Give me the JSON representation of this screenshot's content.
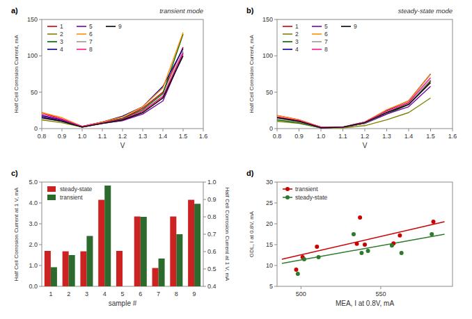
{
  "chart_data": [
    {
      "type": "line",
      "title": "a)",
      "annotations": [
        "transient mode"
      ],
      "xlabel": "V",
      "ylabel": "Half Cell Corrosion Current, mA",
      "x": [
        0.8,
        0.9,
        1.0,
        1.1,
        1.2,
        1.3,
        1.4,
        1.5
      ],
      "xlim": [
        0.8,
        1.6
      ],
      "xticks": [
        0.8,
        0.9,
        {
          "value": 1,
          "label": "1.0"
        },
        1.1,
        1.2,
        1.3,
        1.4,
        1.5,
        1.6
      ],
      "ylim": [
        0,
        150
      ],
      "yticks": [
        0,
        50,
        100,
        150
      ],
      "grid": false,
      "legend": "upper left",
      "series": [
        {
          "name": "1",
          "color": "#cc0000",
          "values": [
            22,
            13,
            3,
            9,
            14,
            28,
            50,
            112
          ]
        },
        {
          "name": "2",
          "color": "#808000",
          "values": [
            12,
            8,
            2,
            7,
            11,
            22,
            42,
            105
          ]
        },
        {
          "name": "3",
          "color": "#006400",
          "values": [
            15,
            10,
            2,
            8,
            14,
            26,
            48,
            130
          ]
        },
        {
          "name": "4",
          "color": "#000099",
          "values": [
            18,
            12,
            3,
            9,
            17,
            30,
            58,
            110
          ]
        },
        {
          "name": "5",
          "color": "#7700aa",
          "values": [
            17,
            11,
            2,
            7,
            11,
            20,
            38,
            103
          ]
        },
        {
          "name": "6",
          "color": "#ff8c00",
          "values": [
            22,
            15,
            3,
            9,
            16,
            30,
            56,
            132
          ]
        },
        {
          "name": "7",
          "color": "#999999",
          "values": [
            14,
            10,
            2,
            7,
            12,
            24,
            45,
            107
          ]
        },
        {
          "name": "8",
          "color": "#ff1493",
          "values": [
            20,
            13,
            3,
            8,
            13,
            24,
            44,
            104
          ]
        },
        {
          "name": "9",
          "color": "#000000",
          "values": [
            15,
            10,
            2,
            7,
            12,
            22,
            42,
            100
          ]
        }
      ]
    },
    {
      "type": "line",
      "title": "b)",
      "annotations": [
        "steady-state mode"
      ],
      "xlabel": "V",
      "ylabel": "Half Cell Corrosion Current, mA",
      "x": [
        0.8,
        0.9,
        1.0,
        1.1,
        1.2,
        1.3,
        1.4,
        1.5
      ],
      "xlim": [
        0.8,
        1.6
      ],
      "xticks": [
        0.8,
        0.9,
        {
          "value": 1,
          "label": "1.0"
        },
        1.1,
        1.2,
        1.3,
        1.4,
        1.5,
        1.6
      ],
      "ylim": [
        0,
        150
      ],
      "yticks": [
        0,
        50,
        100,
        150
      ],
      "grid": false,
      "legend": "upper left",
      "series": [
        {
          "name": "1",
          "color": "#cc0000",
          "values": [
            18,
            12,
            2,
            2,
            7,
            22,
            35,
            65
          ]
        },
        {
          "name": "2",
          "color": "#808000",
          "values": [
            10,
            7,
            1,
            1,
            4,
            12,
            22,
            42
          ]
        },
        {
          "name": "3",
          "color": "#006400",
          "values": [
            12,
            8,
            1,
            2,
            7,
            20,
            33,
            66
          ]
        },
        {
          "name": "4",
          "color": "#000099",
          "values": [
            15,
            10,
            2,
            2,
            9,
            25,
            38,
            75
          ]
        },
        {
          "name": "5",
          "color": "#7700aa",
          "values": [
            15,
            10,
            1,
            2,
            7,
            20,
            30,
            58
          ]
        },
        {
          "name": "6",
          "color": "#ff8c00",
          "values": [
            18,
            12,
            2,
            2,
            9,
            26,
            38,
            75
          ]
        },
        {
          "name": "7",
          "color": "#999999",
          "values": [
            14,
            9,
            1,
            2,
            7,
            22,
            34,
            67
          ]
        },
        {
          "name": "8",
          "color": "#ff1493",
          "values": [
            16,
            11,
            2,
            2,
            9,
            24,
            36,
            70
          ]
        },
        {
          "name": "9",
          "color": "#000000",
          "values": [
            15,
            10,
            1,
            2,
            8,
            22,
            33,
            63
          ]
        }
      ]
    },
    {
      "type": "bar",
      "title": "c)",
      "xlabel": "sample #",
      "ylabel": "Half Cell Corrosion Current at 1 V, mA",
      "y2label": "Half Cell Corrosion Current at 1 V, mA",
      "categories": [
        "1",
        "2",
        "3",
        "4",
        "5",
        "6",
        "7",
        "8",
        "9"
      ],
      "ylim": [
        0,
        5.0
      ],
      "yticks": [
        {
          "value": 0,
          "label": "0.0"
        },
        {
          "value": 1,
          "label": "1.0"
        },
        {
          "value": 2,
          "label": "2.0"
        },
        {
          "value": 3,
          "label": "3.0"
        },
        {
          "value": 4,
          "label": "4.0"
        },
        {
          "value": 5,
          "label": "5.0"
        }
      ],
      "y2lim": [
        0.4,
        1.0
      ],
      "y2ticks": [
        0.4,
        0.5,
        0.6,
        0.7,
        0.8,
        0.9,
        {
          "value": 1,
          "label": "1.0"
        }
      ],
      "grid": false,
      "legend": "upper left",
      "series": [
        {
          "name": "steady-state",
          "color": "#cc2222",
          "values": [
            1.7,
            1.68,
            1.68,
            4.15,
            1.7,
            3.35,
            0.88,
            3.35,
            4.15
          ]
        },
        {
          "name": "transient",
          "color": "#2d6a2d",
          "axis": "y2",
          "values": [
            0.51,
            0.58,
            0.69,
            0.98,
            0.4,
            0.8,
            0.56,
            0.7,
            0.875
          ]
        }
      ]
    },
    {
      "type": "scatter",
      "title": "d)",
      "xlabel": "MEA, I at 0.8V, mA",
      "ylabel": "GDL, I at 0.8V, mA",
      "xlim": [
        485,
        595
      ],
      "xticks": [
        500,
        550
      ],
      "ylim": [
        5,
        30
      ],
      "yticks": [
        5,
        10,
        15,
        20,
        25,
        30
      ],
      "grid": false,
      "legend": "upper left",
      "series": [
        {
          "name": "transient",
          "color": "#cc0000",
          "marker": "circle",
          "x": [
            497,
            501,
            510,
            535,
            537,
            540,
            558,
            562,
            583
          ],
          "values": [
            9,
            12,
            14.5,
            15.2,
            21.5,
            15.0,
            15.3,
            17.2,
            20.5
          ],
          "fit_x": [
            488,
            590
          ],
          "fit_values": [
            11.5,
            20.5
          ]
        },
        {
          "name": "steady-state",
          "color": "#2d7a2d",
          "marker": "circle",
          "x": [
            498,
            502,
            511,
            533,
            538,
            542,
            557,
            563,
            582
          ],
          "values": [
            8,
            11.5,
            12,
            17.5,
            13,
            13.5,
            14.8,
            13,
            17.5
          ],
          "fit_x": [
            488,
            590
          ],
          "fit_values": [
            10.5,
            17.5
          ]
        }
      ]
    }
  ]
}
